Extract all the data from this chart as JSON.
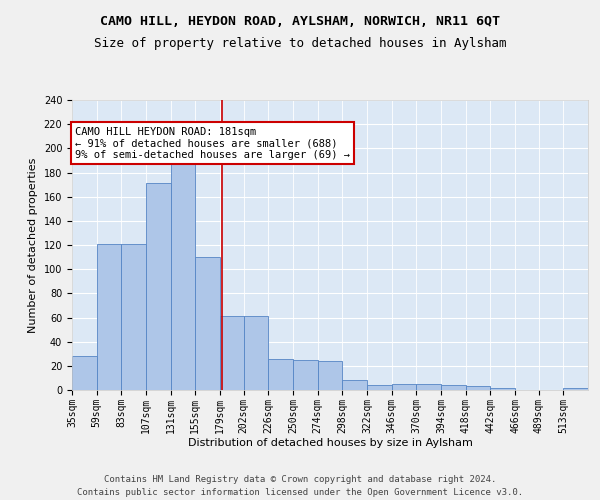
{
  "title": "CAMO HILL, HEYDON ROAD, AYLSHAM, NORWICH, NR11 6QT",
  "subtitle": "Size of property relative to detached houses in Aylsham",
  "xlabel": "Distribution of detached houses by size in Aylsham",
  "ylabel": "Number of detached properties",
  "footer1": "Contains HM Land Registry data © Crown copyright and database right 2024.",
  "footer2": "Contains public sector information licensed under the Open Government Licence v3.0.",
  "bin_labels": [
    "35sqm",
    "59sqm",
    "83sqm",
    "107sqm",
    "131sqm",
    "155sqm",
    "179sqm",
    "202sqm",
    "226sqm",
    "250sqm",
    "274sqm",
    "298sqm",
    "322sqm",
    "346sqm",
    "370sqm",
    "394sqm",
    "418sqm",
    "442sqm",
    "466sqm",
    "489sqm",
    "513sqm"
  ],
  "bin_edges": [
    35,
    59,
    83,
    107,
    131,
    155,
    179,
    202,
    226,
    250,
    274,
    298,
    322,
    346,
    370,
    394,
    418,
    442,
    466,
    489,
    513,
    537
  ],
  "bar_heights": [
    28,
    121,
    121,
    171,
    198,
    110,
    61,
    61,
    26,
    25,
    24,
    8,
    4,
    5,
    5,
    4,
    3,
    2,
    0,
    0,
    2
  ],
  "bar_color": "#aec6e8",
  "bar_edge_color": "#5585c5",
  "property_line_x": 181,
  "property_line_color": "#cc0000",
  "annotation_text": "CAMO HILL HEYDON ROAD: 181sqm\n← 91% of detached houses are smaller (688)\n9% of semi-detached houses are larger (69) →",
  "annotation_box_color": "#ffffff",
  "annotation_box_edge_color": "#cc0000",
  "ylim": [
    0,
    240
  ],
  "yticks": [
    0,
    20,
    40,
    60,
    80,
    100,
    120,
    140,
    160,
    180,
    200,
    220,
    240
  ],
  "background_color": "#dce8f5",
  "grid_color": "#ffffff",
  "figure_bg": "#f0f0f0",
  "title_fontsize": 9.5,
  "subtitle_fontsize": 9,
  "axis_label_fontsize": 8,
  "tick_fontsize": 7,
  "footer_fontsize": 6.5,
  "annotation_fontsize": 7.5
}
